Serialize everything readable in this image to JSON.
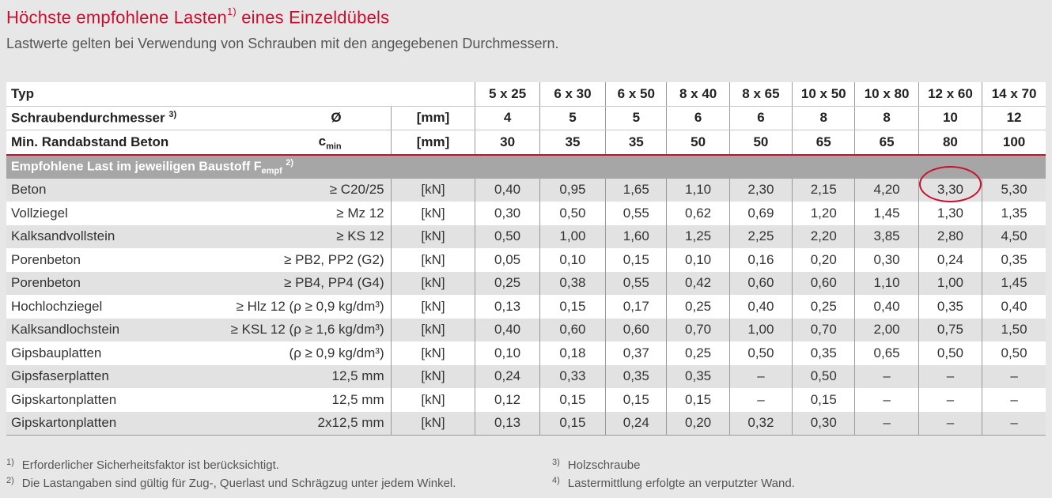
{
  "title": {
    "text": "Höchste empfohlene Lasten",
    "sup": "1)",
    "rest": " eines Einzeldübels"
  },
  "subtitle": "Lastwerte gelten bei Verwendung von Schrauben mit den angegebenen Durchmessern.",
  "header": {
    "typ_label": "Typ",
    "types": [
      "5 x 25",
      "6 x 30",
      "6 x 50",
      "8 x 40",
      "8 x 65",
      "10 x 50",
      "10 x 80",
      "12 x 60",
      "14 x 70"
    ],
    "diam_label": "Schraubendurchmesser",
    "diam_sup": "3)",
    "diam_symbol": "Ø",
    "diam_unit": "[mm]",
    "diam_values": [
      "4",
      "5",
      "5",
      "6",
      "6",
      "8",
      "8",
      "10",
      "12"
    ],
    "edge_label": "Min. Randabstand Beton",
    "edge_symbol_main": "c",
    "edge_symbol_sub": "min",
    "edge_unit": "[mm]",
    "edge_values": [
      "30",
      "35",
      "35",
      "50",
      "50",
      "65",
      "65",
      "80",
      "100"
    ]
  },
  "section": {
    "text": "Empfohlene Last im jeweiligen Baustoff F",
    "sub": "empf",
    "sup": "2)"
  },
  "rows": [
    {
      "label": "Beton",
      "cond": "≥ C20/25",
      "unit": "[kN]",
      "values": [
        "0,40",
        "0,95",
        "1,65",
        "1,10",
        "2,30",
        "2,15",
        "4,20",
        "3,30",
        "5,30"
      ]
    },
    {
      "label": "Vollziegel",
      "cond": "≥ Mz 12",
      "unit": "[kN]",
      "values": [
        "0,30",
        "0,50",
        "0,55",
        "0,62",
        "0,69",
        "1,20",
        "1,45",
        "1,30",
        "1,35"
      ]
    },
    {
      "label": "Kalksandvollstein",
      "cond": "≥ KS 12",
      "unit": "[kN]",
      "values": [
        "0,50",
        "1,00",
        "1,60",
        "1,25",
        "2,25",
        "2,20",
        "3,85",
        "2,80",
        "4,50"
      ]
    },
    {
      "label": "Porenbeton",
      "cond": "≥ PB2, PP2 (G2)",
      "unit": "[kN]",
      "values": [
        "0,05",
        "0,10",
        "0,15",
        "0,10",
        "0,16",
        "0,20",
        "0,30",
        "0,24",
        "0,35"
      ]
    },
    {
      "label": "Porenbeton",
      "cond": "≥ PB4, PP4 (G4)",
      "unit": "[kN]",
      "values": [
        "0,25",
        "0,38",
        "0,55",
        "0,42",
        "0,60",
        "0,60",
        "1,10",
        "1,00",
        "1,45"
      ]
    },
    {
      "label": "Hochlochziegel",
      "cond": "≥ Hlz 12 (ρ ≥ 0,9 kg/dm³)",
      "unit": "[kN]",
      "values": [
        "0,13",
        "0,15",
        "0,17",
        "0,25",
        "0,40",
        "0,25",
        "0,40",
        "0,35",
        "0,40"
      ]
    },
    {
      "label": "Kalksandlochstein",
      "cond": "≥ KSL 12 (ρ ≥ 1,6 kg/dm³)",
      "unit": "[kN]",
      "values": [
        "0,40",
        "0,60",
        "0,60",
        "0,70",
        "1,00",
        "0,70",
        "2,00",
        "0,75",
        "1,50"
      ]
    },
    {
      "label": "Gipsbauplatten",
      "cond": "(ρ ≥ 0,9 kg/dm³)",
      "unit": "[kN]",
      "values": [
        "0,10",
        "0,18",
        "0,37",
        "0,25",
        "0,50",
        "0,35",
        "0,65",
        "0,50",
        "0,50"
      ]
    },
    {
      "label": "Gipsfaserplatten",
      "cond": "12,5 mm",
      "unit": "[kN]",
      "values": [
        "0,24",
        "0,33",
        "0,35",
        "0,35",
        "–",
        "0,50",
        "–",
        "–",
        "–"
      ]
    },
    {
      "label": "Gipskartonplatten",
      "cond": "12,5 mm",
      "unit": "[kN]",
      "values": [
        "0,12",
        "0,15",
        "0,15",
        "0,15",
        "–",
        "0,15",
        "–",
        "–",
        "–"
      ]
    },
    {
      "label": "Gipskartonplatten",
      "cond": "2x12,5 mm",
      "unit": "[kN]",
      "values": [
        "0,13",
        "0,15",
        "0,24",
        "0,20",
        "0,32",
        "0,30",
        "–",
        "–",
        "–"
      ]
    }
  ],
  "footnotes": [
    {
      "num": "1)",
      "text": "Erforderlicher Sicherheitsfaktor ist berücksichtigt."
    },
    {
      "num": "2)",
      "text": "Die Lastangaben sind gültig für Zug-, Querlast und Schrägzug unter jedem Winkel."
    },
    {
      "num": "3)",
      "text": "Holzschraube"
    },
    {
      "num": "4)",
      "text": "Lastermittlung erfolgte an verputzter Wand."
    }
  ],
  "colors": {
    "accent": "#c8102e",
    "section_bg": "#a6a6a6",
    "page_bg": "#e7e7e7"
  }
}
